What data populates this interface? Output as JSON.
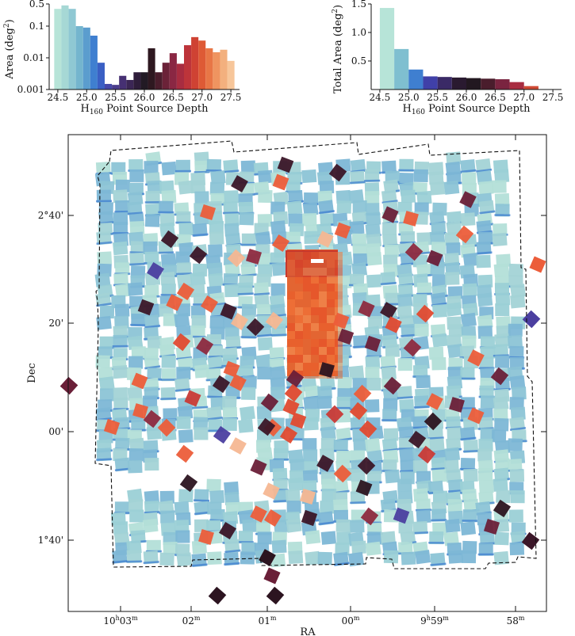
{
  "chart_data": [
    {
      "type": "bar",
      "name": "area-vs-depth-histogram",
      "ylabel": "Area (deg²)",
      "ylabel_main": "Area (deg",
      "ylabel_sup": "2",
      "ylabel_close": ")",
      "xlabel_main": "H",
      "xlabel_sub": "160",
      "xlabel_rest": " Point Source Depth",
      "yscale": "log",
      "ylim": [
        0.001,
        0.5
      ],
      "xlim": [
        24.35,
        27.65
      ],
      "bin_width": 0.125,
      "x": [
        24.5,
        24.625,
        24.75,
        24.875,
        25.0,
        25.125,
        25.25,
        25.375,
        25.5,
        25.625,
        25.75,
        25.875,
        26.0,
        26.125,
        26.25,
        26.375,
        26.5,
        26.625,
        26.75,
        26.875,
        27.0,
        27.125,
        27.25,
        27.375,
        27.5
      ],
      "values": [
        0.35,
        0.45,
        0.35,
        0.1,
        0.09,
        0.05,
        0.007,
        0.0015,
        0.0014,
        0.0027,
        0.002,
        0.0035,
        0.0035,
        0.02,
        0.0035,
        0.007,
        0.014,
        0.0065,
        0.025,
        0.045,
        0.035,
        0.02,
        0.015,
        0.018,
        0.008
      ],
      "colors": [
        "#b7e4d8",
        "#a6d8d5",
        "#8fc8d3",
        "#74b5ce",
        "#5b9dce",
        "#3f7fd0",
        "#3a5fc4",
        "#4648a8",
        "#4a3c8c",
        "#463073",
        "#3b2655",
        "#2e1d3a",
        "#221a24",
        "#2e1820",
        "#4a1d2c",
        "#6b2238",
        "#8a2743",
        "#a82c40",
        "#bd343a",
        "#cf4233",
        "#de5a35",
        "#e87646",
        "#ef9460",
        "#f3b07e",
        "#f7c69a"
      ],
      "yticks": [
        0.001,
        0.01,
        0.1,
        0.5
      ],
      "ytick_labels": [
        "0.001",
        "0.01",
        "0.1",
        "0.5"
      ],
      "xticks": [
        24.5,
        25.0,
        25.5,
        26.0,
        26.5,
        27.0,
        27.5
      ],
      "xtick_labels": [
        "24.5",
        "25.0",
        "25.5",
        "26.0",
        "26.5",
        "27.0",
        "27.5"
      ]
    },
    {
      "type": "bar",
      "name": "cumulative-area-histogram",
      "ylabel": "Total Area (deg²)",
      "ylabel_main": "Total Area (deg",
      "ylabel_sup": "2",
      "ylabel_close": ")",
      "xlabel_main": "H",
      "xlabel_sub": "160",
      "xlabel_rest": " Point Source Depth",
      "ylim": [
        0,
        1.5
      ],
      "xlim": [
        24.35,
        27.65
      ],
      "bin_width": 0.25,
      "x": [
        24.625,
        24.875,
        25.125,
        25.375,
        25.625,
        25.875,
        26.125,
        26.375,
        26.625,
        26.875,
        27.125
      ],
      "values": [
        1.43,
        0.71,
        0.35,
        0.23,
        0.22,
        0.21,
        0.2,
        0.19,
        0.18,
        0.13,
        0.06
      ],
      "colors": [
        "#b7e4d8",
        "#7fbfd0",
        "#3f7fd0",
        "#4040a8",
        "#3a2a66",
        "#2a1a30",
        "#221820",
        "#4a1d2c",
        "#7a2440",
        "#a82c40",
        "#d04a34"
      ],
      "yticks": [
        0.5,
        1.0,
        1.5
      ],
      "ytick_labels": [
        "0.5",
        "1.0",
        "1.5"
      ],
      "xticks": [
        24.5,
        25.0,
        25.5,
        26.0,
        26.5,
        27.0,
        27.5
      ],
      "xtick_labels": [
        "24.5",
        "25.0",
        "25.5",
        "26.0",
        "26.5",
        "27.0",
        "27.5"
      ]
    },
    {
      "type": "scatter",
      "name": "coverage-map",
      "xlabel": "RA",
      "ylabel": "Dec",
      "xtick_labels": [
        {
          "main": "10",
          "sup1": "h",
          "mid": "03",
          "sup2": "m"
        },
        {
          "main": "",
          "sup1": "",
          "mid": "02",
          "sup2": "m"
        },
        {
          "main": "",
          "sup1": "",
          "mid": "01",
          "sup2": "m"
        },
        {
          "main": "",
          "sup1": "",
          "mid": "00",
          "sup2": "m"
        },
        {
          "main": "9",
          "sup1": "h",
          "mid": "59",
          "sup2": "m"
        },
        {
          "main": "",
          "sup1": "",
          "mid": "58",
          "sup2": "m"
        }
      ],
      "ytick_labels": [
        "2°40'",
        "20'",
        "00'",
        "1°40'"
      ],
      "tile_palette": [
        "#b3dfd8",
        "#a3d3d6",
        "#8cc4d6",
        "#7db7d6",
        "#9bd0d6"
      ],
      "deep_palette": [
        "#e8602e",
        "#f07a3e",
        "#e4502a",
        "#f39a5c",
        "#de6a36"
      ],
      "scattered_palette": [
        "#ec5d3a",
        "#e04a30",
        "#3b1628",
        "#6a1f38",
        "#8d2a3f",
        "#f5b792",
        "#2c1420",
        "#4b3fa0",
        "#3a6fd0",
        "#c93a36"
      ]
    }
  ]
}
